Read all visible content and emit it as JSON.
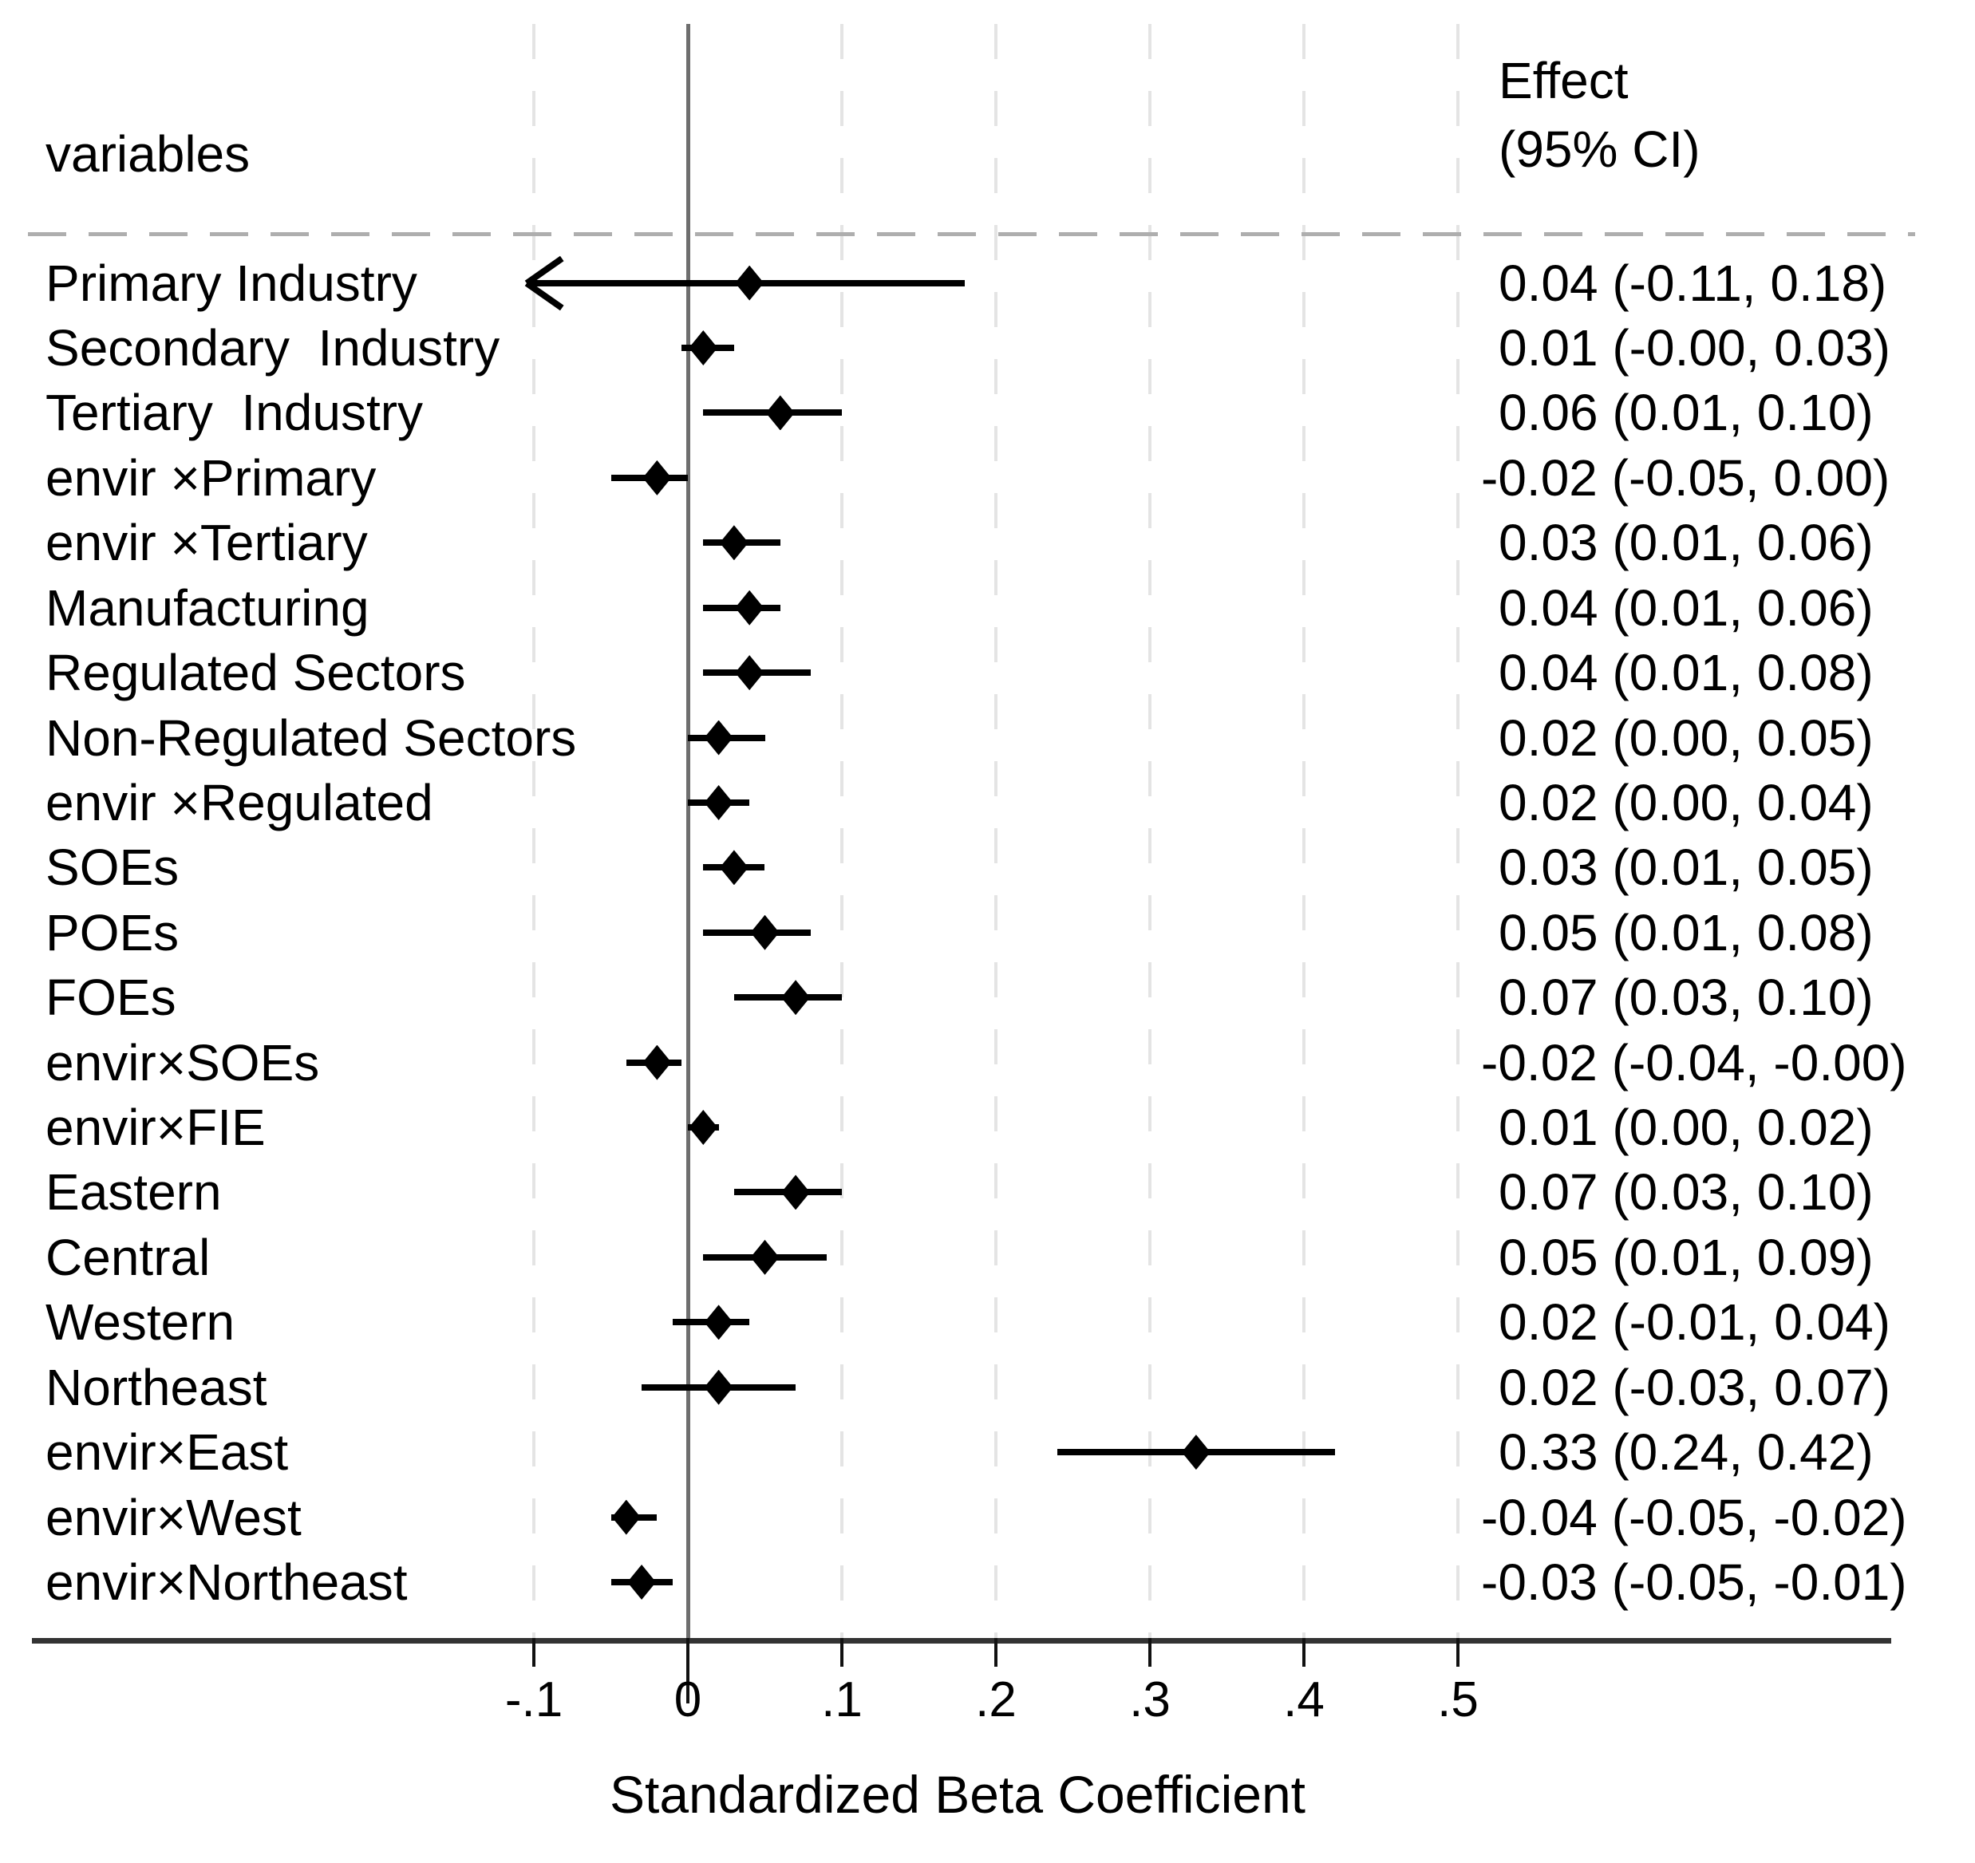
{
  "chart_data": {
    "type": "forest",
    "xlabel": "Standardized Beta Coefficient",
    "col_headers": {
      "left": "variables",
      "right_line1": "Effect",
      "right_line2": "(95% CI)"
    },
    "x_tick_values": [
      -0.1,
      0,
      0.1,
      0.2,
      0.3,
      0.4,
      0.5
    ],
    "x_tick_labels": [
      "-.1",
      "0",
      ".1",
      ".2",
      ".3",
      ".4",
      ".5"
    ],
    "xlim": [
      -0.104,
      0.56
    ],
    "grid": "vertical-dashed",
    "legend": "none",
    "rows": [
      {
        "label": "Primary Industry",
        "effect": "0.04 (-0.11, 0.18)",
        "est": 0.04,
        "lo": -0.11,
        "hi": 0.18
      },
      {
        "label": "Secondary  Industry",
        "effect": "0.01 (-0.00, 0.03)",
        "est": 0.01,
        "lo": -0.004,
        "hi": 0.03
      },
      {
        "label": "Tertiary  Industry",
        "effect": "0.06 (0.01, 0.10)",
        "est": 0.06,
        "lo": 0.01,
        "hi": 0.1
      },
      {
        "label": "envir ×Primary",
        "effect": "-0.02 (-0.05, 0.00)",
        "est": -0.02,
        "lo": -0.05,
        "hi": 0.0
      },
      {
        "label": "envir ×Tertiary",
        "effect": "0.03 (0.01, 0.06)",
        "est": 0.03,
        "lo": 0.01,
        "hi": 0.06
      },
      {
        "label": "Manufacturing",
        "effect": "0.04 (0.01, 0.06)",
        "est": 0.04,
        "lo": 0.01,
        "hi": 0.06
      },
      {
        "label": "Regulated Sectors",
        "effect": "0.04 (0.01, 0.08)",
        "est": 0.04,
        "lo": 0.01,
        "hi": 0.08
      },
      {
        "label": "Non-Regulated Sectors",
        "effect": "0.02 (0.00, 0.05)",
        "est": 0.02,
        "lo": 0.0,
        "hi": 0.05
      },
      {
        "label": "envir ×Regulated",
        "effect": "0.02 (0.00, 0.04)",
        "est": 0.02,
        "lo": 0.0,
        "hi": 0.04
      },
      {
        "label": "SOEs",
        "effect": "0.03 (0.01, 0.05)",
        "est": 0.03,
        "lo": 0.01,
        "hi": 0.05
      },
      {
        "label": "POEs",
        "effect": "0.05 (0.01, 0.08)",
        "est": 0.05,
        "lo": 0.01,
        "hi": 0.08
      },
      {
        "label": "FOEs",
        "effect": "0.07 (0.03, 0.10)",
        "est": 0.07,
        "lo": 0.03,
        "hi": 0.1
      },
      {
        "label": "envir×SOEs",
        "effect": "-0.02 (-0.04, -0.00)",
        "est": -0.02,
        "lo": -0.04,
        "hi": -0.004
      },
      {
        "label": "envir×FIE",
        "effect": "0.01 (0.00, 0.02)",
        "est": 0.01,
        "lo": 0.0,
        "hi": 0.02
      },
      {
        "label": "Eastern",
        "effect": "0.07 (0.03, 0.10)",
        "est": 0.07,
        "lo": 0.03,
        "hi": 0.1
      },
      {
        "label": "Central",
        "effect": "0.05 (0.01, 0.09)",
        "est": 0.05,
        "lo": 0.01,
        "hi": 0.09
      },
      {
        "label": "Western",
        "effect": "0.02 (-0.01, 0.04)",
        "est": 0.02,
        "lo": -0.01,
        "hi": 0.04
      },
      {
        "label": "Northeast",
        "effect": "0.02 (-0.03, 0.07)",
        "est": 0.02,
        "lo": -0.03,
        "hi": 0.07
      },
      {
        "label": "envir×East",
        "effect": "0.33 (0.24, 0.42)",
        "est": 0.33,
        "lo": 0.24,
        "hi": 0.42
      },
      {
        "label": "envir×West",
        "effect": "-0.04 (-0.05, -0.02)",
        "est": -0.04,
        "lo": -0.05,
        "hi": -0.02
      },
      {
        "label": "envir×Northeast",
        "effect": "-0.03 (-0.05, -0.01)",
        "est": -0.03,
        "lo": -0.05,
        "hi": -0.01
      }
    ],
    "colors": {
      "marker": "#000000",
      "ci_line": "#000000",
      "zero_line": "#6e6e6e",
      "gridline": "#e4e4e4",
      "separator": "#aeaeae",
      "axis": "#333333",
      "text": "#000000",
      "background": "#ffffff"
    }
  }
}
